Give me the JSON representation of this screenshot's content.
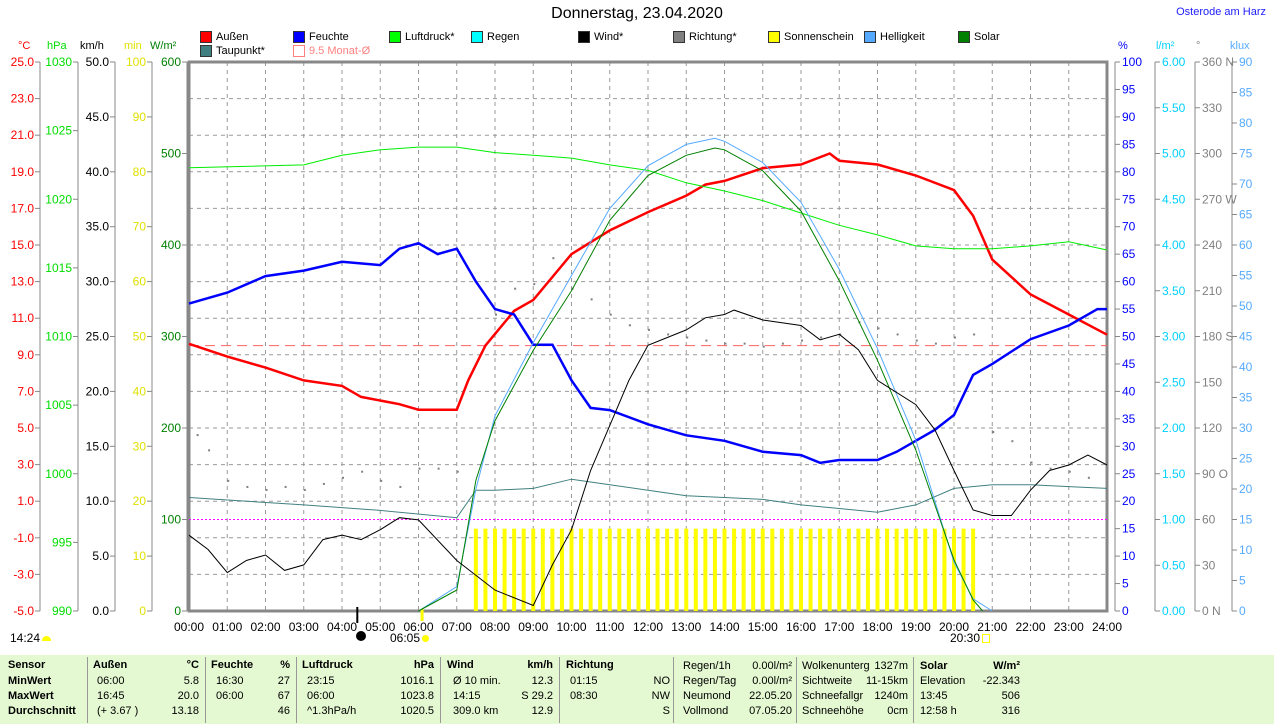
{
  "title": "Donnerstag, 23.04.2020",
  "location": "Osterode am Harz",
  "legend": [
    {
      "label": "Außen",
      "color": "#ff0000"
    },
    {
      "label": "Feuchte",
      "color": "#0000ff"
    },
    {
      "label": "Luftdruck*",
      "color": "#00ff00"
    },
    {
      "label": "Regen",
      "color": "#00ffff"
    },
    {
      "label": "Wind*",
      "color": "#000000"
    },
    {
      "label": "Richtung*",
      "color": "#808080"
    },
    {
      "label": "Sonnenschein",
      "color": "#ffff00"
    },
    {
      "label": "Helligkeit",
      "color": "#55aaff"
    },
    {
      "label": "Solar",
      "color": "#008000"
    },
    {
      "label": "Taupunkt*",
      "color": "#408080"
    },
    {
      "label": "9.5 Monat-Ø",
      "color": "#ff8080"
    }
  ],
  "units": {
    "temp": "°C",
    "pressure": "hPa",
    "wind": "km/h",
    "sun": "min",
    "solar": "W/m²",
    "hum": "%",
    "rain": "l/m²",
    "dir": "°",
    "lux": "klux"
  },
  "markers": {
    "moonrise": "14:24",
    "sunrise": "06:05",
    "sunset": "20:30"
  },
  "chart_data": {
    "type": "line",
    "title": "Donnerstag, 23.04.2020",
    "xlabel": "",
    "x_range": [
      0,
      24
    ],
    "x_ticks": [
      "00:00",
      "01:00",
      "02:00",
      "03:00",
      "04:00",
      "05:00",
      "06:00",
      "07:00",
      "08:00",
      "09:00",
      "10:00",
      "11:00",
      "12:00",
      "13:00",
      "14:00",
      "15:00",
      "16:00",
      "17:00",
      "18:00",
      "19:00",
      "20:00",
      "21:00",
      "22:00",
      "23:00",
      "24:00"
    ],
    "axes": {
      "temp": {
        "range": [
          -5,
          25
        ],
        "ticks": [
          "25.0",
          "23.0",
          "21.0",
          "19.0",
          "17.0",
          "15.0",
          "13.0",
          "11.0",
          "9.0",
          "7.0",
          "5.0",
          "3.0",
          "1.0",
          "-1.0",
          "-3.0",
          "-5.0"
        ],
        "color": "#ff0000"
      },
      "pressure": {
        "range": [
          990,
          1030
        ],
        "ticks": [
          "1030",
          "1025",
          "1020",
          "1015",
          "1010",
          "1005",
          "1000",
          "995",
          "990"
        ],
        "color": "#00dd00"
      },
      "wind": {
        "range": [
          0,
          50
        ],
        "ticks": [
          "50.0",
          "45.0",
          "40.0",
          "35.0",
          "30.0",
          "25.0",
          "20.0",
          "15.0",
          "10.0",
          "5.0",
          "0.0"
        ],
        "color": "#000000"
      },
      "sun": {
        "range": [
          0,
          100
        ],
        "ticks": [
          "100",
          "90",
          "80",
          "70",
          "60",
          "50",
          "40",
          "30",
          "20",
          "10",
          "0"
        ],
        "color": "#e0e000"
      },
      "solar": {
        "range": [
          0,
          600
        ],
        "ticks": [
          "600",
          "500",
          "400",
          "300",
          "200",
          "100",
          "0"
        ],
        "color": "#008000"
      },
      "hum": {
        "range": [
          0,
          100
        ],
        "ticks": [
          "100",
          "95",
          "90",
          "85",
          "80",
          "75",
          "70",
          "65",
          "60",
          "55",
          "50",
          "45",
          "40",
          "35",
          "30",
          "25",
          "20",
          "15",
          "10",
          "5",
          "0"
        ],
        "color": "#0000ff"
      },
      "rain": {
        "range": [
          0,
          6
        ],
        "ticks": [
          "6.00",
          "5.50",
          "5.00",
          "4.50",
          "4.00",
          "3.50",
          "3.00",
          "2.50",
          "2.00",
          "1.50",
          "1.00",
          "0.50",
          "0.00"
        ],
        "color": "#00d0ff"
      },
      "dir": {
        "range": [
          0,
          360
        ],
        "ticks": [
          "360 N",
          "330",
          "300",
          "270 W",
          "240",
          "210",
          "180 S",
          "150",
          "120",
          "90 O",
          "60",
          "30",
          "0 N"
        ],
        "color": "#808080"
      },
      "lux": {
        "range": [
          0,
          90
        ],
        "ticks": [
          "90",
          "85",
          "80",
          "75",
          "70",
          "65",
          "60",
          "55",
          "50",
          "45",
          "40",
          "35",
          "30",
          "25",
          "20",
          "15",
          "10",
          "5",
          "0"
        ],
        "color": "#55aaff"
      }
    },
    "monthly_avg_temp": 9.5,
    "solar_threshold": 100,
    "series": [
      {
        "name": "Außen",
        "axis": "temp",
        "color": "#ff0000",
        "width": 2.5,
        "x": [
          0,
          1,
          2,
          3,
          4,
          4.5,
          5.5,
          6,
          7,
          7.3,
          7.75,
          8.5,
          9,
          10,
          11,
          12,
          13,
          13.5,
          14,
          15,
          16,
          16.75,
          17,
          18,
          19,
          20,
          20.5,
          21,
          22,
          23,
          24
        ],
        "y": [
          9.6,
          8.9,
          8.3,
          7.6,
          7.3,
          6.7,
          6.3,
          6.0,
          6.0,
          7.6,
          9.5,
          11.4,
          12,
          14.5,
          15.8,
          16.8,
          17.7,
          18.3,
          18.5,
          19.2,
          19.4,
          20.0,
          19.6,
          19.4,
          18.8,
          18.0,
          16.6,
          14.2,
          12.3,
          11.2,
          10.1
        ]
      },
      {
        "name": "Feuchte",
        "axis": "hum",
        "color": "#0000ff",
        "width": 2.5,
        "x": [
          0,
          1,
          2,
          3,
          4,
          5,
          5.5,
          6,
          6.5,
          7,
          7.5,
          8,
          8.5,
          9,
          9.5,
          10,
          10.5,
          11,
          12,
          12.5,
          13,
          14,
          15,
          16,
          16.5,
          17,
          18,
          18.5,
          19,
          19.5,
          20,
          20.5,
          21,
          22,
          23,
          23.75,
          24
        ],
        "y": [
          56,
          58,
          61,
          62,
          63.6,
          63,
          66,
          67,
          65,
          66,
          60,
          55,
          54,
          48.5,
          48.5,
          42,
          37,
          36.6,
          34,
          33,
          32,
          31,
          29,
          28.4,
          27,
          27.5,
          27.5,
          29,
          31,
          33,
          35.7,
          43,
          45,
          49.5,
          52,
          55,
          55
        ]
      },
      {
        "name": "Luftdruck*",
        "axis": "pressure",
        "color": "#00ee00",
        "width": 1,
        "x": [
          0,
          3,
          4,
          5,
          6,
          7,
          8,
          9,
          10,
          11,
          12,
          13,
          14,
          15,
          16,
          17,
          18,
          19,
          20,
          21,
          22,
          23,
          24
        ],
        "y": [
          1022.3,
          1022.5,
          1023.2,
          1023.6,
          1023.8,
          1023.8,
          1023.4,
          1023.2,
          1023,
          1022.5,
          1022.1,
          1021.2,
          1020.6,
          1019.9,
          1019,
          1018.1,
          1017.4,
          1016.6,
          1016.4,
          1016.4,
          1016.6,
          1016.9,
          1016.3
        ]
      },
      {
        "name": "Taupunkt*",
        "axis": "temp",
        "color": "#408080",
        "width": 1,
        "x": [
          0,
          3,
          5,
          7,
          7.5,
          8,
          9,
          10,
          11,
          12,
          13,
          14,
          15,
          16,
          17,
          18,
          19,
          20,
          21,
          22,
          23,
          24
        ],
        "y": [
          1.2,
          0.8,
          0.5,
          0.1,
          1.6,
          1.6,
          1.7,
          2.2,
          1.9,
          1.6,
          1.3,
          1.2,
          1.1,
          0.8,
          0.6,
          0.4,
          0.8,
          1.7,
          1.9,
          1.9,
          1.8,
          1.7
        ]
      },
      {
        "name": "Helligkeit",
        "axis": "lux",
        "color": "#55aaff",
        "width": 1,
        "x": [
          6,
          7,
          7.5,
          8,
          9,
          10,
          11,
          12,
          13,
          13.75,
          14,
          15,
          16,
          17,
          18,
          19,
          20,
          20.5,
          21
        ],
        "y": [
          0,
          4,
          20,
          32,
          44,
          55,
          66,
          73,
          76.5,
          77.5,
          77,
          73.5,
          67,
          56,
          43,
          28,
          8,
          2,
          0
        ]
      },
      {
        "name": "Solar",
        "axis": "solar",
        "color": "#008000",
        "width": 1,
        "x": [
          6,
          7,
          7.5,
          8,
          9,
          10,
          11,
          12,
          13,
          13.75,
          14,
          15,
          16,
          17,
          18,
          19,
          20,
          20.5,
          20.75
        ],
        "y": [
          0,
          23,
          143,
          208,
          285,
          350,
          427,
          476,
          498,
          506,
          504,
          481,
          437,
          361,
          274,
          176,
          56,
          12,
          0
        ]
      },
      {
        "name": "Wind*",
        "axis": "wind",
        "color": "#000000",
        "width": 1,
        "x": [
          0,
          0.5,
          1,
          1.5,
          2,
          2.5,
          3,
          3.5,
          4,
          4.5,
          5,
          5.5,
          6,
          7,
          8,
          9,
          9.5,
          10,
          10.5,
          11,
          11.5,
          12,
          13,
          13.5,
          14,
          14.25,
          15,
          16,
          16.5,
          17,
          17.5,
          18,
          19,
          19.5,
          20,
          20.5,
          21,
          21.5,
          22,
          22.5,
          23,
          23.5,
          24
        ],
        "y": [
          6.9,
          5.6,
          3.5,
          4.6,
          5.1,
          3.7,
          4.2,
          6.5,
          6.9,
          6.5,
          7.4,
          8.5,
          8.3,
          4.6,
          1.9,
          0.5,
          4.2,
          7.4,
          12.8,
          16.9,
          21,
          24.2,
          25.6,
          26.7,
          27,
          27.4,
          26.5,
          26,
          24.7,
          25.2,
          23.8,
          21,
          18.8,
          16.5,
          12.8,
          9.2,
          8.7,
          8.7,
          11,
          12.8,
          13.3,
          14.2,
          13.3
        ]
      }
    ],
    "direction_points": {
      "axis": "dir",
      "x": [
        0.2,
        0.5,
        1,
        1.5,
        2,
        2.5,
        3,
        3.5,
        4,
        4.5,
        5,
        5.5,
        6,
        6.5,
        7,
        8,
        8.5,
        9,
        9.5,
        10,
        10.5,
        11,
        11.5,
        12,
        12.5,
        13,
        13.5,
        14,
        14.5,
        15,
        15.5,
        16,
        16.5,
        17,
        17.5,
        18,
        18.5,
        19,
        19.5,
        20,
        20.5,
        21,
        21.5,
        22,
        22.5,
        23,
        23.5
      ],
      "y": [
        116,
        106,
        86,
        82,
        80,
        82,
        80,
        84,
        88,
        92,
        86,
        82,
        94,
        94,
        92,
        195,
        212,
        215,
        232,
        212,
        205,
        195,
        188,
        185,
        182,
        180,
        178,
        176,
        176,
        174,
        176,
        178,
        180,
        182,
        190,
        186,
        182,
        178,
        176,
        180,
        182,
        118,
        112,
        98,
        94,
        92,
        88
      ]
    },
    "sunshine": {
      "axis": "sun",
      "x_start": 7.5,
      "x_end": 20.5,
      "step": 0.25,
      "value": 15
    }
  },
  "table": {
    "headers": [
      "Sensor",
      "Außen",
      "°C",
      "Feuchte",
      "%",
      "Luftdruck",
      "hPa",
      "Wind",
      "km/h",
      "Richtung"
    ],
    "rows": [
      {
        "label": "MinWert",
        "t_time": "06:00",
        "t_val": "5.8",
        "h_time": "16:30",
        "h_val": "27",
        "p_time": "23:15",
        "p_val": "1016.1",
        "w_time": "Ø 10 min.",
        "w_val": "12.3",
        "d_time": "01:15",
        "d_val": "NO"
      },
      {
        "label": "MaxWert",
        "t_time": "16:45",
        "t_val": "20.0",
        "h_time": "06:00",
        "h_val": "67",
        "p_time": "06:00",
        "p_val": "1023.8",
        "w_time": "14:15",
        "w_val": "S 29.2",
        "d_time": "08:30",
        "d_val": "NW"
      },
      {
        "label": "Durchschnitt",
        "t_time": "(+ 3.67 )",
        "t_val": "13.18",
        "h_time": "",
        "h_val": "46",
        "p_time": "^1.3hPa/h",
        "p_val": "1020.5",
        "w_time": "309.0 km",
        "w_val": "12.9",
        "d_time": "",
        "d_val": "S"
      }
    ],
    "extra1": [
      [
        "Regen/1h",
        "0.00l/m²"
      ],
      [
        "Regen/Tag",
        "0.00l/m²"
      ],
      [
        "Neumond",
        "22.05.20"
      ],
      [
        "Vollmond",
        "07.05.20"
      ]
    ],
    "extra2": [
      [
        "Wolkenunterg",
        "1327m"
      ],
      [
        "Sichtweite",
        "11-15km"
      ],
      [
        "Schneefallgr",
        "1240m"
      ],
      [
        "Schneehöhe",
        "0cm"
      ]
    ],
    "solar": {
      "header": "Solar",
      "unit": "W/m²",
      "rows": [
        [
          "Elevation",
          "-22.343"
        ],
        [
          "13:45",
          "506"
        ],
        [
          "12:58 h",
          "316"
        ]
      ]
    }
  }
}
